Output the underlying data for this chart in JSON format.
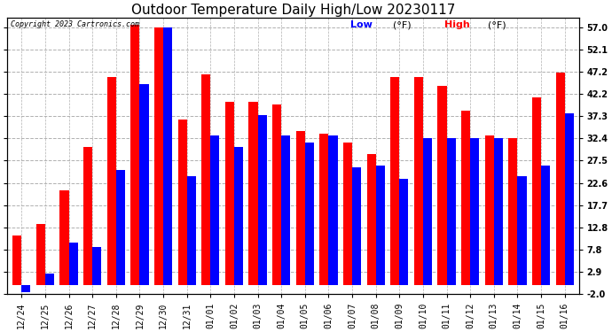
{
  "title": "Outdoor Temperature Daily High/Low 20230117",
  "copyright": "Copyright 2023 Cartronics.com",
  "legend_low": "Low",
  "legend_high": "High",
  "legend_unit": "(°F)",
  "dates": [
    "12/24",
    "12/25",
    "12/26",
    "12/27",
    "12/28",
    "12/29",
    "12/30",
    "12/31",
    "01/01",
    "01/02",
    "01/03",
    "01/04",
    "01/05",
    "01/06",
    "01/07",
    "01/08",
    "01/09",
    "01/10",
    "01/11",
    "01/12",
    "01/13",
    "01/14",
    "01/15",
    "01/16"
  ],
  "high_values": [
    11.0,
    13.5,
    21.0,
    30.5,
    46.0,
    57.5,
    57.0,
    36.5,
    46.5,
    40.5,
    40.5,
    40.0,
    34.0,
    33.5,
    31.5,
    29.0,
    46.0,
    46.0,
    44.0,
    38.5,
    33.0,
    32.5,
    41.5,
    47.0
  ],
  "low_values": [
    -1.5,
    2.5,
    9.5,
    8.5,
    25.5,
    44.5,
    57.0,
    24.0,
    33.0,
    30.5,
    37.5,
    33.0,
    31.5,
    33.0,
    26.0,
    26.5,
    23.5,
    32.5,
    32.5,
    32.5,
    32.5,
    24.0,
    26.5,
    38.0
  ],
  "high_color": "#ff0000",
  "low_color": "#0000ff",
  "bg_color": "#ffffff",
  "grid_color": "#b0b0b0",
  "yticks": [
    -2.0,
    2.9,
    7.8,
    12.8,
    17.7,
    22.6,
    27.5,
    32.4,
    37.3,
    42.2,
    47.2,
    52.1,
    57.0
  ],
  "ylim": [
    -2.0,
    59.0
  ],
  "title_fontsize": 11,
  "tick_fontsize": 7,
  "copyright_fontsize": 6,
  "legend_fontsize": 8,
  "bar_width": 0.38
}
